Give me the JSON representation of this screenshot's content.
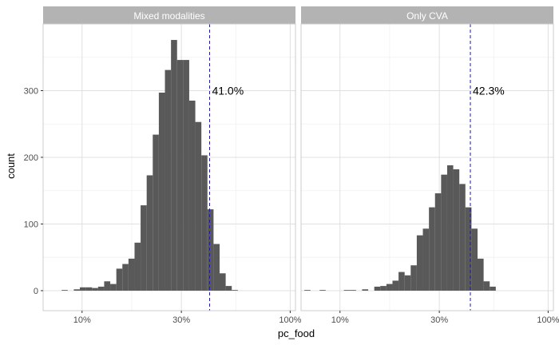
{
  "chart_data": {
    "type": "bar",
    "subtype": "faceted histogram",
    "xlabel": "pc_food",
    "ylabel": "count",
    "x_scale": "log10",
    "x_domain": [
      0.065,
      1.06
    ],
    "x_ticks": [
      {
        "value": 0.1,
        "label": "10%"
      },
      {
        "value": 0.3,
        "label": "30%"
      },
      {
        "value": 1.0,
        "label": "100%"
      }
    ],
    "ylim": [
      -30,
      400
    ],
    "y_ticks": [
      {
        "value": 0,
        "label": "0"
      },
      {
        "value": 100,
        "label": "100"
      },
      {
        "value": 200,
        "label": "200"
      },
      {
        "value": 300,
        "label": "300"
      }
    ],
    "grid": true,
    "colors": {
      "bar": "#595959",
      "mean_line": "#1a1aa6",
      "strip": "#b3b3b3",
      "grid": "#e0e0e0",
      "panel_border": "#cccccc"
    },
    "panels": [
      {
        "title": "Mixed modalities",
        "mean": 0.41,
        "mean_label": "41.0%",
        "bins": [
          {
            "x0": 0.0798,
            "x1": 0.0853,
            "count": 1
          },
          {
            "x0": 0.0913,
            "x1": 0.0976,
            "count": 2
          },
          {
            "x0": 0.0976,
            "x1": 0.1044,
            "count": 5
          },
          {
            "x0": 0.1044,
            "x1": 0.1117,
            "count": 5
          },
          {
            "x0": 0.1117,
            "x1": 0.1194,
            "count": 4
          },
          {
            "x0": 0.1194,
            "x1": 0.1277,
            "count": 6
          },
          {
            "x0": 0.1277,
            "x1": 0.1366,
            "count": 14
          },
          {
            "x0": 0.1366,
            "x1": 0.1461,
            "count": 10
          },
          {
            "x0": 0.1461,
            "x1": 0.1562,
            "count": 33
          },
          {
            "x0": 0.1562,
            "x1": 0.1671,
            "count": 40
          },
          {
            "x0": 0.1671,
            "x1": 0.1787,
            "count": 48
          },
          {
            "x0": 0.1787,
            "x1": 0.1911,
            "count": 72
          },
          {
            "x0": 0.1911,
            "x1": 0.2044,
            "count": 128
          },
          {
            "x0": 0.2044,
            "x1": 0.2186,
            "count": 173
          },
          {
            "x0": 0.2186,
            "x1": 0.2338,
            "count": 234
          },
          {
            "x0": 0.2338,
            "x1": 0.2501,
            "count": 297
          },
          {
            "x0": 0.2501,
            "x1": 0.2675,
            "count": 331
          },
          {
            "x0": 0.2675,
            "x1": 0.2861,
            "count": 376
          },
          {
            "x0": 0.2861,
            "x1": 0.306,
            "count": 346
          },
          {
            "x0": 0.306,
            "x1": 0.3272,
            "count": 346
          },
          {
            "x0": 0.3272,
            "x1": 0.35,
            "count": 285
          },
          {
            "x0": 0.35,
            "x1": 0.3743,
            "count": 253
          },
          {
            "x0": 0.3743,
            "x1": 0.4003,
            "count": 203
          },
          {
            "x0": 0.4003,
            "x1": 0.4282,
            "count": 122
          },
          {
            "x0": 0.4282,
            "x1": 0.458,
            "count": 70
          },
          {
            "x0": 0.458,
            "x1": 0.4898,
            "count": 26
          },
          {
            "x0": 0.4898,
            "x1": 0.5239,
            "count": 7
          },
          {
            "x0": 0.5239,
            "x1": 0.5603,
            "count": 1
          }
        ]
      },
      {
        "title": "Only CVA",
        "mean": 0.423,
        "mean_label": "42.3%",
        "bins": [
          {
            "x0": 0.0674,
            "x1": 0.0721,
            "count": 1
          },
          {
            "x0": 0.0798,
            "x1": 0.0853,
            "count": 1
          },
          {
            "x0": 0.1044,
            "x1": 0.1117,
            "count": 1
          },
          {
            "x0": 0.1117,
            "x1": 0.1194,
            "count": 1
          },
          {
            "x0": 0.1277,
            "x1": 0.1366,
            "count": 2
          },
          {
            "x0": 0.1461,
            "x1": 0.1562,
            "count": 6
          },
          {
            "x0": 0.1562,
            "x1": 0.1671,
            "count": 7
          },
          {
            "x0": 0.1671,
            "x1": 0.1787,
            "count": 10
          },
          {
            "x0": 0.1787,
            "x1": 0.1911,
            "count": 15
          },
          {
            "x0": 0.1911,
            "x1": 0.2044,
            "count": 28
          },
          {
            "x0": 0.2044,
            "x1": 0.2186,
            "count": 23
          },
          {
            "x0": 0.2186,
            "x1": 0.2338,
            "count": 38
          },
          {
            "x0": 0.2338,
            "x1": 0.2501,
            "count": 83
          },
          {
            "x0": 0.2501,
            "x1": 0.2675,
            "count": 93
          },
          {
            "x0": 0.2675,
            "x1": 0.2861,
            "count": 125
          },
          {
            "x0": 0.2861,
            "x1": 0.306,
            "count": 146
          },
          {
            "x0": 0.306,
            "x1": 0.3272,
            "count": 174
          },
          {
            "x0": 0.3272,
            "x1": 0.35,
            "count": 188
          },
          {
            "x0": 0.35,
            "x1": 0.3743,
            "count": 182
          },
          {
            "x0": 0.3743,
            "x1": 0.4003,
            "count": 160
          },
          {
            "x0": 0.4003,
            "x1": 0.4282,
            "count": 125
          },
          {
            "x0": 0.4282,
            "x1": 0.458,
            "count": 93
          },
          {
            "x0": 0.458,
            "x1": 0.4898,
            "count": 48
          },
          {
            "x0": 0.4898,
            "x1": 0.5239,
            "count": 14
          },
          {
            "x0": 0.5239,
            "x1": 0.5603,
            "count": 6
          }
        ]
      }
    ]
  }
}
